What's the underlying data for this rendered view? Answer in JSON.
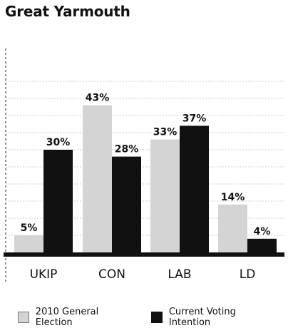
{
  "title": "Great Yarmouth",
  "chart_data": {
    "type": "bar",
    "categories": [
      "UKIP",
      "CON",
      "LAB",
      "LD"
    ],
    "series": [
      {
        "name": "2010 General Election",
        "values": [
          5,
          43,
          33,
          14
        ],
        "labels": [
          "5%",
          "43%",
          "33%",
          "14%"
        ],
        "color": "#d4d4d4"
      },
      {
        "name": "Current Voting Intention",
        "values": [
          30,
          28,
          37,
          4
        ],
        "labels": [
          "30%",
          "28%",
          "37%",
          "4%"
        ],
        "color": "#111111"
      }
    ],
    "ylim": [
      0,
      50
    ],
    "grid": true,
    "legend_position": "bottom"
  }
}
